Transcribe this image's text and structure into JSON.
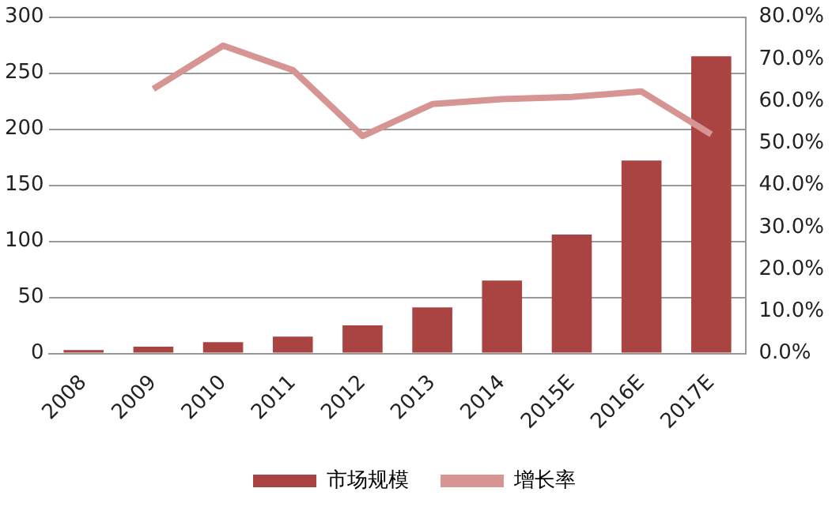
{
  "chart_data": {
    "type": "bar",
    "categories": [
      "2008",
      "2009",
      "2010",
      "2011",
      "2012",
      "2013",
      "2014",
      "2015E",
      "2016E",
      "2017E"
    ],
    "series": [
      {
        "name": "市场规模",
        "color": "#a94442",
        "values": [
          3,
          6,
          10,
          15,
          25,
          41,
          65,
          106,
          172,
          265
        ]
      },
      {
        "name": "增长率",
        "type": "line",
        "axis": "y2",
        "color": "#d69592",
        "values": [
          null,
          62.9,
          73.2,
          67.4,
          51.7,
          59.3,
          60.5,
          61.0,
          62.3,
          52.1
        ]
      }
    ],
    "ylim": [
      0,
      300
    ],
    "yticks": [
      0,
      50,
      100,
      150,
      200,
      250,
      300
    ],
    "y2lim": [
      0,
      80
    ],
    "y2ticks": [
      {
        "value": 0,
        "label": "0.0%"
      },
      {
        "value": 10,
        "label": "10.0%"
      },
      {
        "value": 20,
        "label": "20.0%"
      },
      {
        "value": 30,
        "label": "30.0%"
      },
      {
        "value": 40,
        "label": "40.0%"
      },
      {
        "value": 50,
        "label": "50.0%"
      },
      {
        "value": 60,
        "label": "60.0%"
      },
      {
        "value": 70,
        "label": "70.0%"
      },
      {
        "value": 80,
        "label": "80.0%"
      }
    ],
    "grid": "y",
    "legend": "bottom",
    "marker": "none"
  }
}
